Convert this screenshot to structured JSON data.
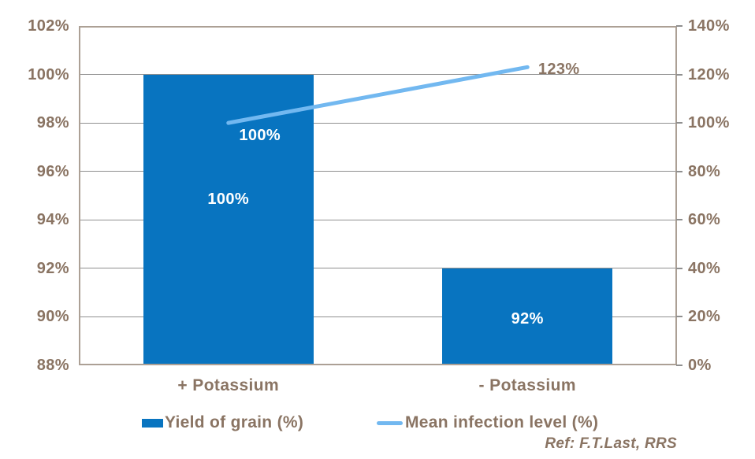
{
  "chart_data": {
    "type": "bar",
    "subtype": "bar-and-line-combo",
    "categories": [
      "+ Potassium",
      "- Potassium"
    ],
    "series": [
      {
        "name": "Yield of grain (%)",
        "type": "bar",
        "axis": "left",
        "values": [
          100,
          92
        ],
        "data_labels": [
          "100%",
          "92%"
        ],
        "color": "#0874c0"
      },
      {
        "name": "Mean infection level (%)",
        "type": "line",
        "axis": "right",
        "values": [
          100,
          123
        ],
        "data_labels": [
          "100%",
          "123%"
        ],
        "color": "#72b8f0"
      }
    ],
    "title": "",
    "xlabel": "",
    "ylabel": "",
    "left_axis": {
      "min": 88,
      "max": 102,
      "step": 2,
      "ticks": [
        "102%",
        "100%",
        "98%",
        "96%",
        "94%",
        "92%",
        "90%",
        "88%"
      ]
    },
    "right_axis": {
      "min": 0,
      "max": 140,
      "step": 20,
      "ticks": [
        "140%",
        "120%",
        "100%",
        "80%",
        "60%",
        "40%",
        "20%",
        "0%"
      ]
    },
    "grid": true,
    "legend_position": "bottom"
  },
  "legend": {
    "items": [
      {
        "label": "Yield of grain (%)",
        "marker": "bar-swatch"
      },
      {
        "label": "Mean infection level (%)",
        "marker": "line-swatch"
      }
    ]
  },
  "footer": {
    "reference": "Ref: F.T.Last, RRS"
  },
  "colors": {
    "bar_blue": "#0874c0",
    "line_blue": "#72b8f0",
    "text_brown": "#8a7463",
    "grid_gray": "#8f8f8f",
    "border_tan": "#aca095",
    "data_label_white": "#ffffff",
    "background": "#ffffff"
  }
}
